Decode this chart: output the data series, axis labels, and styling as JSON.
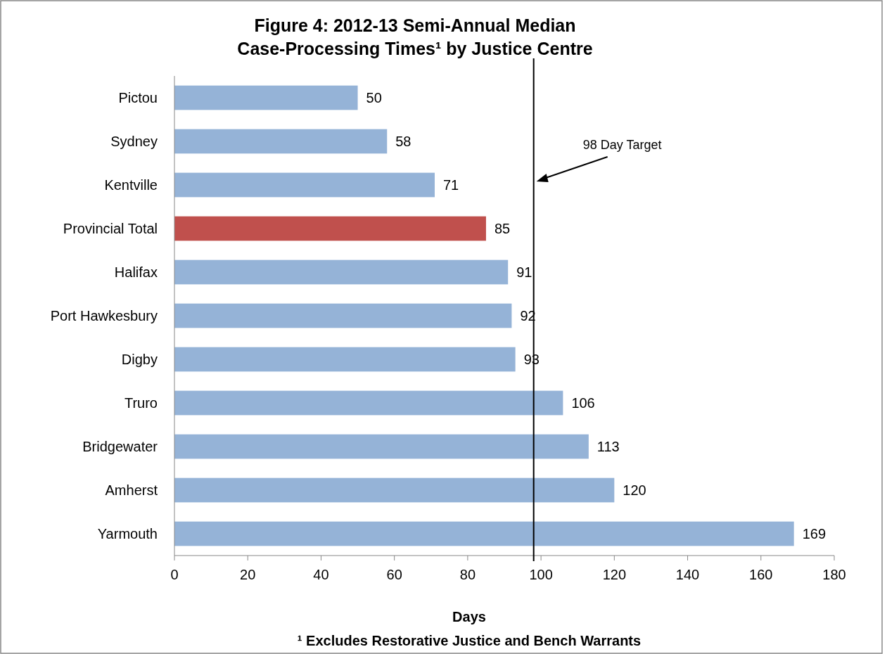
{
  "chart_data": {
    "type": "bar",
    "orientation": "horizontal",
    "title": "Figure 4:  2012-13 Semi-Annual Median\nCase-Processing Times¹ by Justice Centre",
    "xlabel": "Days",
    "categories": [
      "Pictou",
      "Sydney",
      "Kentville",
      "Provincial Total",
      "Halifax",
      "Port Hawkesbury",
      "Digby",
      "Truro",
      "Bridgewater",
      "Amherst",
      "Yarmouth"
    ],
    "values": [
      50,
      58,
      71,
      85,
      91,
      92,
      93,
      106,
      113,
      120,
      169
    ],
    "colors": [
      "#95b3d7",
      "#95b3d7",
      "#95b3d7",
      "#c0504d",
      "#95b3d7",
      "#95b3d7",
      "#95b3d7",
      "#95b3d7",
      "#95b3d7",
      "#95b3d7",
      "#95b3d7"
    ],
    "xlim": [
      0,
      180
    ],
    "xticks": [
      0,
      20,
      40,
      60,
      80,
      100,
      120,
      140,
      160,
      180
    ],
    "data_labels": true,
    "ref_lines": [
      {
        "axis": "x",
        "value": 98,
        "label": "98 Day Target",
        "color": "#000000"
      }
    ],
    "annotations": [
      "¹ Excludes Restorative Justice and Bench Warrants"
    ]
  }
}
